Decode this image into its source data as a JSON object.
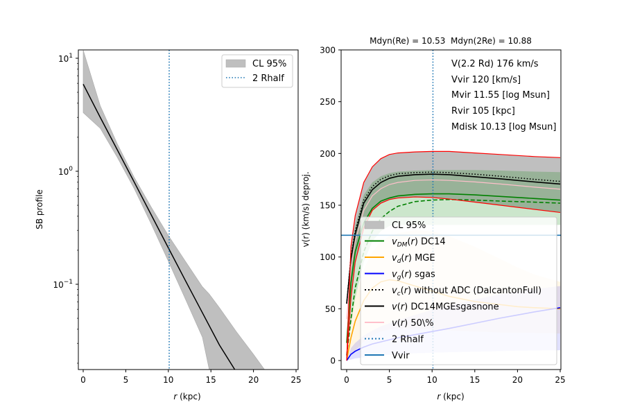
{
  "chart_data": [
    {
      "type": "line",
      "name": "sb-profile",
      "xlabel_italic": "r",
      "xlabel_rest": " (kpc)",
      "ylabel": "SB profile",
      "yscale": "log",
      "xlim": [
        -0.5,
        25.3
      ],
      "ylim": [
        0.0176,
        11.8
      ],
      "xticks": [
        0,
        5,
        10,
        15,
        20,
        25
      ],
      "yticks": [
        {
          "value": 10,
          "base": "10",
          "exp": "1"
        },
        {
          "value": 1,
          "base": "10",
          "exp": "0"
        },
        {
          "value": 0.1,
          "base": "10",
          "exp": "−1"
        }
      ],
      "series": [
        {
          "name": "median",
          "color": "#000000",
          "x": [
            0,
            2,
            4,
            6,
            8,
            10,
            12,
            14,
            16,
            17.8
          ],
          "y": [
            5.9,
            3.0,
            1.55,
            0.8,
            0.41,
            0.21,
            0.108,
            0.056,
            0.029,
            0.0176
          ]
        }
      ],
      "band": {
        "name": "CL 95%",
        "color": "#bfbfbf",
        "x": [
          0,
          2,
          4,
          6,
          8,
          10,
          12,
          14,
          14.8,
          16,
          18,
          20,
          21.3
        ],
        "upper": [
          11.8,
          3.8,
          1.75,
          0.88,
          0.48,
          0.27,
          0.16,
          0.095,
          0.082,
          0.062,
          0.038,
          0.024,
          0.0176
        ],
        "lower": [
          3.3,
          2.4,
          1.33,
          0.7,
          0.34,
          0.16,
          0.074,
          0.034,
          0.0176,
          null,
          null,
          null,
          null
        ]
      },
      "vline": {
        "x": 10.1,
        "label": "2 Rhalf",
        "color": "#1f77b4"
      },
      "legend": {
        "placement": "upper-right",
        "entries": [
          "CL 95%",
          "2 Rhalf"
        ]
      }
    },
    {
      "type": "line",
      "name": "rotation-curve",
      "title": "Mdyn(Re) = 10.53  Mdyn(2Re) = 10.88",
      "xlabel_italic": "r",
      "xlabel_rest": " (kpc)",
      "ylabel": "v(r) (km/s) deproj.",
      "xlim": [
        -0.6,
        25.3
      ],
      "ylim": [
        -9,
        300
      ],
      "xticks": [
        0,
        5,
        10,
        15,
        20,
        25
      ],
      "yticks": [
        0,
        50,
        100,
        150,
        200,
        250,
        300
      ],
      "x": [
        0,
        0.5,
        1,
        2,
        3,
        4,
        5,
        6,
        8,
        10,
        12,
        15,
        18,
        20,
        22,
        25
      ],
      "series": [
        {
          "name": "v_DM(r) DC14",
          "color": "#008000",
          "y": [
            17,
            75,
            105,
            133,
            147,
            154,
            157,
            159,
            160.5,
            161,
            161,
            160,
            158.5,
            157.5,
            156.5,
            155
          ]
        },
        {
          "name": "v_DM dashed",
          "color": "#008000",
          "dash": true,
          "y": [
            5,
            40,
            70,
            105,
            125,
            137,
            144,
            149,
            153.5,
            155,
            155.5,
            155,
            154,
            153.5,
            153,
            152
          ]
        },
        {
          "name": "v_d(r) MGE",
          "color": "#ffa500",
          "y": [
            0,
            22,
            38,
            58,
            70,
            76,
            78,
            77,
            72,
            67,
            62,
            57,
            54,
            52,
            51,
            50
          ]
        },
        {
          "name": "v_g(r) sgas",
          "color": "#0000ff",
          "y": [
            0,
            6,
            9,
            13,
            16,
            18,
            20,
            22,
            25,
            28,
            31,
            36,
            41,
            44,
            47,
            51
          ]
        },
        {
          "name": "v_c(r) without ADC (DalcantonFull)",
          "color": "#000000",
          "dotted": true,
          "y": [
            55,
            100,
            125,
            155,
            168,
            175,
            178.5,
            180.5,
            181.5,
            182,
            181.5,
            180,
            178,
            176.5,
            175,
            173
          ]
        },
        {
          "name": "v(r) DC14MGEsgasnone",
          "color": "#000000",
          "y": [
            55,
            98,
            122,
            152,
            165,
            172,
            176,
            178,
            179.5,
            180,
            179.5,
            177.5,
            175.5,
            174,
            172.5,
            170.5
          ]
        },
        {
          "name": "v(r) 50\\%",
          "color": "#ffc0cb",
          "y": [
            40,
            90,
            115,
            145,
            159,
            166,
            170,
            172,
            174,
            174.5,
            174,
            172.5,
            170.5,
            169,
            167.5,
            165.5
          ]
        },
        {
          "name": "red upper",
          "color": "#ff0000",
          "y": [
            0,
            110,
            140,
            172,
            187,
            195,
            199,
            200.5,
            201.5,
            202,
            202,
            200.5,
            199,
            198,
            197,
            196
          ]
        },
        {
          "name": "red lower",
          "color": "#ff0000",
          "y": [
            0,
            60,
            95,
            128,
            145,
            152,
            155.5,
            157,
            158,
            157.5,
            156,
            153,
            150,
            148,
            146,
            143
          ]
        }
      ],
      "bands": [
        {
          "name": "CL 95%",
          "color": "#bfbfbf",
          "upper": [
            0,
            110,
            140,
            172,
            187,
            195,
            199,
            200.5,
            201.5,
            202,
            202,
            200.5,
            199,
            198,
            197,
            196
          ],
          "lower": [
            0,
            60,
            95,
            128,
            145,
            152,
            155.5,
            157,
            158,
            157.5,
            156,
            153,
            150,
            148,
            146,
            143
          ]
        },
        {
          "name": "DM band",
          "color": "#008000",
          "upper": [
            20,
            105,
            130,
            160,
            172,
            178,
            181,
            182.5,
            183.5,
            184,
            184,
            184,
            183.5,
            183,
            182.5,
            182
          ],
          "lower": [
            5,
            35,
            60,
            95,
            115,
            125,
            130,
            131,
            131,
            131,
            131,
            131,
            131,
            131,
            131,
            131
          ]
        },
        {
          "name": "disk band",
          "color": "#ffa500",
          "upper": [
            0,
            40,
            62,
            88,
            105,
            115,
            120,
            123,
            126,
            125,
            120,
            110,
            98,
            90,
            83,
            76
          ],
          "lower": [
            0,
            5,
            10,
            18,
            24,
            28,
            30,
            31,
            31,
            30,
            29,
            28,
            27,
            27,
            26.5,
            26
          ]
        },
        {
          "name": "gas band",
          "color": "#0000ff",
          "upper": [
            0,
            12,
            17,
            24,
            29,
            33,
            36,
            39,
            44,
            49,
            53,
            59,
            64,
            67,
            69,
            72
          ],
          "lower": [
            0,
            1,
            2,
            3,
            4,
            5,
            5.5,
            6,
            7,
            7.5,
            8,
            8.5,
            9,
            9.5,
            9.7,
            10
          ]
        }
      ],
      "vline": {
        "x": 10.1,
        "label": "2 Rhalf",
        "color": "#1f77b4"
      },
      "hline": {
        "y": 121,
        "label": "Vvir",
        "color": "#1f77b4"
      },
      "annotations": [
        "V(2.2 Rd) 176 km/s",
        "Vvir 120 [km/s]",
        "Mvir 11.55 [log Msun]",
        "Rvir 105 [kpc]",
        "Mdisk 10.13 [log Msun]"
      ],
      "legend": {
        "placement": "lower-right",
        "entries": [
          {
            "label": "CL 95%",
            "kind": "patch",
            "color": "#bfbfbf"
          },
          {
            "label_v": "v",
            "label_sub": "DM",
            "label_r": "r",
            "label_rest": " DC14",
            "kind": "line",
            "color": "#008000"
          },
          {
            "label_v": "v",
            "label_sub": "d",
            "label_r": "r",
            "label_rest": " MGE",
            "kind": "line",
            "color": "#ffa500"
          },
          {
            "label_v": "v",
            "label_sub": "g",
            "label_r": "r",
            "label_rest": " sgas",
            "kind": "line",
            "color": "#0000ff"
          },
          {
            "label_v": "v",
            "label_sub": "c",
            "label_r": "r",
            "label_rest": " without ADC (DalcantonFull)",
            "kind": "dotted",
            "color": "#000000"
          },
          {
            "label_v": "v",
            "label_sub": "",
            "label_r": "r",
            "label_rest": " DC14MGEsgasnone",
            "kind": "line",
            "color": "#000000"
          },
          {
            "label_v": "v",
            "label_sub": "",
            "label_r": "r",
            "label_rest": " 50\\%",
            "kind": "line",
            "color": "#ffc0cb"
          },
          {
            "label": "2 Rhalf",
            "kind": "dotted",
            "color": "#1f77b4"
          },
          {
            "label": "Vvir",
            "kind": "line",
            "color": "#1f77b4"
          }
        ]
      }
    }
  ]
}
